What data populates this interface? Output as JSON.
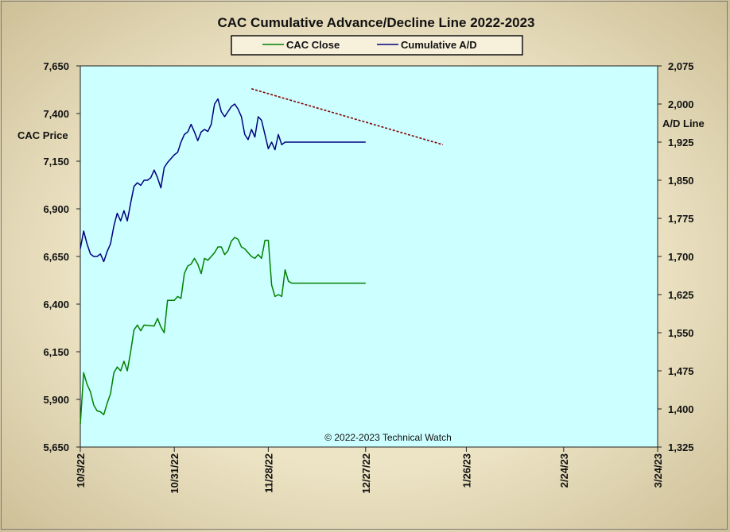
{
  "chart_data": {
    "type": "line",
    "title": "CAC Cumulative  Advance/Decline  Line 2022-2023",
    "ylabel_left": "CAC Price",
    "ylabel_right": "A/D Line",
    "copyright": "© 2022-2023  Technical  Watch",
    "legend_position": "top-center",
    "grid": false,
    "colors": {
      "plot_bg": "#ccffff",
      "cac_close": "#008000",
      "cumulative_ad": "#000080",
      "trendline": "#800000"
    },
    "x_ticks": [
      "10/3/22",
      "10/31/22",
      "11/28/22",
      "12/27/22",
      "1/26/23",
      "2/24/23",
      "3/24/23"
    ],
    "x_tick_days": [
      0,
      28,
      56,
      85,
      115,
      144,
      172
    ],
    "xlim": [
      0,
      172
    ],
    "y_left": {
      "ticks": [
        "5,650",
        "5,900",
        "6,150",
        "6,400",
        "6,650",
        "6,900",
        "7,150",
        "7,400",
        "7,650"
      ],
      "lim": [
        5650,
        7650
      ]
    },
    "y_right": {
      "ticks": [
        "1,325",
        "1,400",
        "1,475",
        "1,550",
        "1,625",
        "1,700",
        "1,775",
        "1,850",
        "1,925",
        "2,000",
        "2,075"
      ],
      "lim": [
        1325,
        2075
      ]
    },
    "series": [
      {
        "name": "CAC Close",
        "axis": "left",
        "x": [
          0,
          1,
          2,
          3,
          4,
          5,
          6,
          7,
          8,
          9,
          10,
          11,
          12,
          13,
          14,
          15,
          16,
          17,
          18,
          19,
          22,
          23,
          24,
          25,
          26,
          28,
          29,
          30,
          31,
          32,
          33,
          34,
          35,
          36,
          37,
          38,
          39,
          40,
          41,
          42,
          43,
          44,
          45,
          46,
          47,
          48,
          49,
          50,
          51,
          52,
          53,
          54,
          55,
          56,
          57,
          58,
          59,
          60,
          61,
          62,
          63,
          64,
          65,
          66,
          67,
          68,
          69,
          70,
          71,
          72,
          73,
          74,
          75,
          76,
          77,
          78,
          79,
          80,
          81,
          82,
          83,
          84,
          85
        ],
        "values": [
          5770,
          6040,
          5980,
          5940,
          5870,
          5840,
          5835,
          5820,
          5880,
          5930,
          6040,
          6070,
          6050,
          6100,
          6050,
          6150,
          6265,
          6290,
          6260,
          6290,
          6285,
          6325,
          6280,
          6250,
          6420,
          6420,
          6440,
          6430,
          6560,
          6600,
          6610,
          6640,
          6610,
          6560,
          6640,
          6630,
          6650,
          6670,
          6700,
          6700,
          6660,
          6680,
          6730,
          6750,
          6740,
          6700,
          6690,
          6670,
          6650,
          6640,
          6660,
          6640,
          6735,
          6735,
          6500,
          6440,
          6450,
          6440,
          6580,
          6520,
          6510,
          6510,
          6510,
          6510,
          6510,
          6510,
          6510,
          6510,
          6510,
          6510,
          6510,
          6510,
          6510,
          6510,
          6510,
          6510,
          6510,
          6510,
          6510,
          6510,
          6510,
          6510,
          6510
        ]
      },
      {
        "name": "Cumulative A/D",
        "axis": "right",
        "x": [
          0,
          1,
          2,
          3,
          4,
          5,
          6,
          7,
          8,
          9,
          10,
          11,
          12,
          13,
          14,
          15,
          16,
          17,
          18,
          19,
          20,
          21,
          22,
          23,
          24,
          25,
          26,
          28,
          29,
          30,
          31,
          32,
          33,
          34,
          35,
          36,
          37,
          38,
          39,
          40,
          41,
          42,
          43,
          44,
          45,
          46,
          47,
          48,
          49,
          50,
          51,
          52,
          53,
          54,
          55,
          56,
          57,
          58,
          59,
          60,
          61,
          62,
          63,
          64,
          65,
          66,
          67,
          68,
          69,
          70,
          71,
          72,
          73,
          74,
          75,
          76,
          77,
          78,
          79,
          80,
          81,
          82,
          83,
          84,
          85
        ],
        "values": [
          1715,
          1750,
          1725,
          1705,
          1700,
          1700,
          1705,
          1690,
          1710,
          1725,
          1760,
          1785,
          1770,
          1790,
          1770,
          1805,
          1838,
          1845,
          1840,
          1850,
          1850,
          1855,
          1870,
          1855,
          1835,
          1875,
          1885,
          1900,
          1905,
          1925,
          1940,
          1945,
          1960,
          1945,
          1928,
          1945,
          1950,
          1946,
          1960,
          2000,
          2010,
          1985,
          1975,
          1985,
          1995,
          2000,
          1990,
          1975,
          1940,
          1930,
          1950,
          1935,
          1975,
          1968,
          1940,
          1912,
          1925,
          1910,
          1940,
          1920,
          1925,
          1925,
          1925,
          1925,
          1925,
          1925,
          1925,
          1925,
          1925,
          1925,
          1925,
          1925,
          1925,
          1925,
          1925,
          1925,
          1925,
          1925,
          1925,
          1925,
          1925,
          1925,
          1925,
          1925,
          1925
        ]
      }
    ],
    "trendline": {
      "axis": "right",
      "from": [
        51,
        2030
      ],
      "to": [
        108,
        1920
      ]
    }
  }
}
